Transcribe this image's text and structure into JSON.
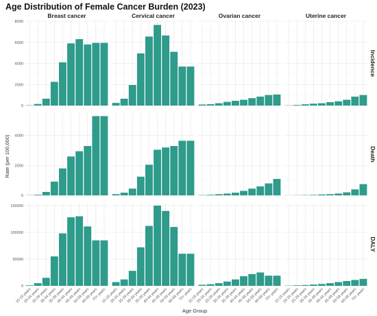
{
  "chart_data": {
    "type": "bar",
    "title": "Age Distribution of Female Cancer Burden (2023)",
    "xlabel": "Age Group",
    "ylabel": "Rate (per 100,000)",
    "bar_color": "#2e9b8b",
    "grid": true,
    "categories": [
      "15-19 years",
      "20-24 years",
      "25-29 years",
      "30-34 years",
      "35-39 years",
      "40-44 years",
      "45-49 years",
      "50-59 years",
      "60-69 years",
      "70+ years"
    ],
    "columns": [
      "Breast cancer",
      "Cervical cancer",
      "Ovarian cancer",
      "Uterine cancer"
    ],
    "rows": [
      {
        "name": "Incidence",
        "ylim": [
          0,
          8000
        ],
        "yticks": [
          0,
          2000,
          4000,
          6000,
          8000
        ],
        "ytick_labels": [
          "0",
          "2000",
          "4000",
          "6000",
          "8000"
        ],
        "series": [
          {
            "name": "Breast cancer",
            "values": [
              30,
              150,
              650,
              2250,
              4100,
              5900,
              6300,
              5800,
              5950,
              5950
            ]
          },
          {
            "name": "Cervical cancer",
            "values": [
              250,
              650,
              1950,
              4950,
              6550,
              7650,
              6650,
              5100,
              3700,
              3700
            ]
          },
          {
            "name": "Ovarian cancer",
            "values": [
              100,
              130,
              220,
              350,
              450,
              550,
              700,
              850,
              1000,
              1050
            ]
          },
          {
            "name": "Uterine cancer",
            "values": [
              20,
              60,
              120,
              180,
              220,
              320,
              400,
              550,
              850,
              1000
            ]
          }
        ]
      },
      {
        "name": "Death",
        "ylim": [
          0,
          5500
        ],
        "yticks": [
          0,
          2000,
          4000
        ],
        "ytick_labels": [
          "0",
          "2000",
          "4000"
        ],
        "series": [
          {
            "name": "Breast cancer",
            "values": [
              10,
              40,
              230,
              920,
              1800,
              2600,
              2950,
              3300,
              5300,
              5300
            ]
          },
          {
            "name": "Cervical cancer",
            "values": [
              80,
              180,
              450,
              1250,
              2050,
              3050,
              3200,
              3300,
              3650,
              3650
            ]
          },
          {
            "name": "Ovarian cancer",
            "values": [
              20,
              40,
              80,
              120,
              180,
              300,
              450,
              600,
              800,
              1100
            ]
          },
          {
            "name": "Uterine cancer",
            "values": [
              5,
              10,
              20,
              30,
              60,
              80,
              120,
              200,
              400,
              750
            ]
          }
        ]
      },
      {
        "name": "DALY",
        "ylim": [
          0,
          155000
        ],
        "yticks": [
          0,
          50000,
          100000,
          150000
        ],
        "ytick_labels": [
          "0",
          "50000",
          "100000",
          "150000"
        ],
        "series": [
          {
            "name": "Breast cancer",
            "values": [
              1000,
              5000,
              15000,
              55000,
              98000,
              128000,
              130000,
              111000,
              85000,
              85000
            ]
          },
          {
            "name": "Cervical cancer",
            "values": [
              7000,
              12000,
              28000,
              72000,
              112000,
              150000,
              140000,
              110000,
              60000,
              60000
            ]
          },
          {
            "name": "Ovarian cancer",
            "values": [
              2000,
              3000,
              5000,
              8000,
              12000,
              18000,
              22000,
              25000,
              19000,
              19000
            ]
          },
          {
            "name": "Uterine cancer",
            "values": [
              500,
              1000,
              1500,
              2500,
              3500,
              5000,
              7000,
              9000,
              11000,
              13000
            ]
          }
        ]
      }
    ]
  }
}
